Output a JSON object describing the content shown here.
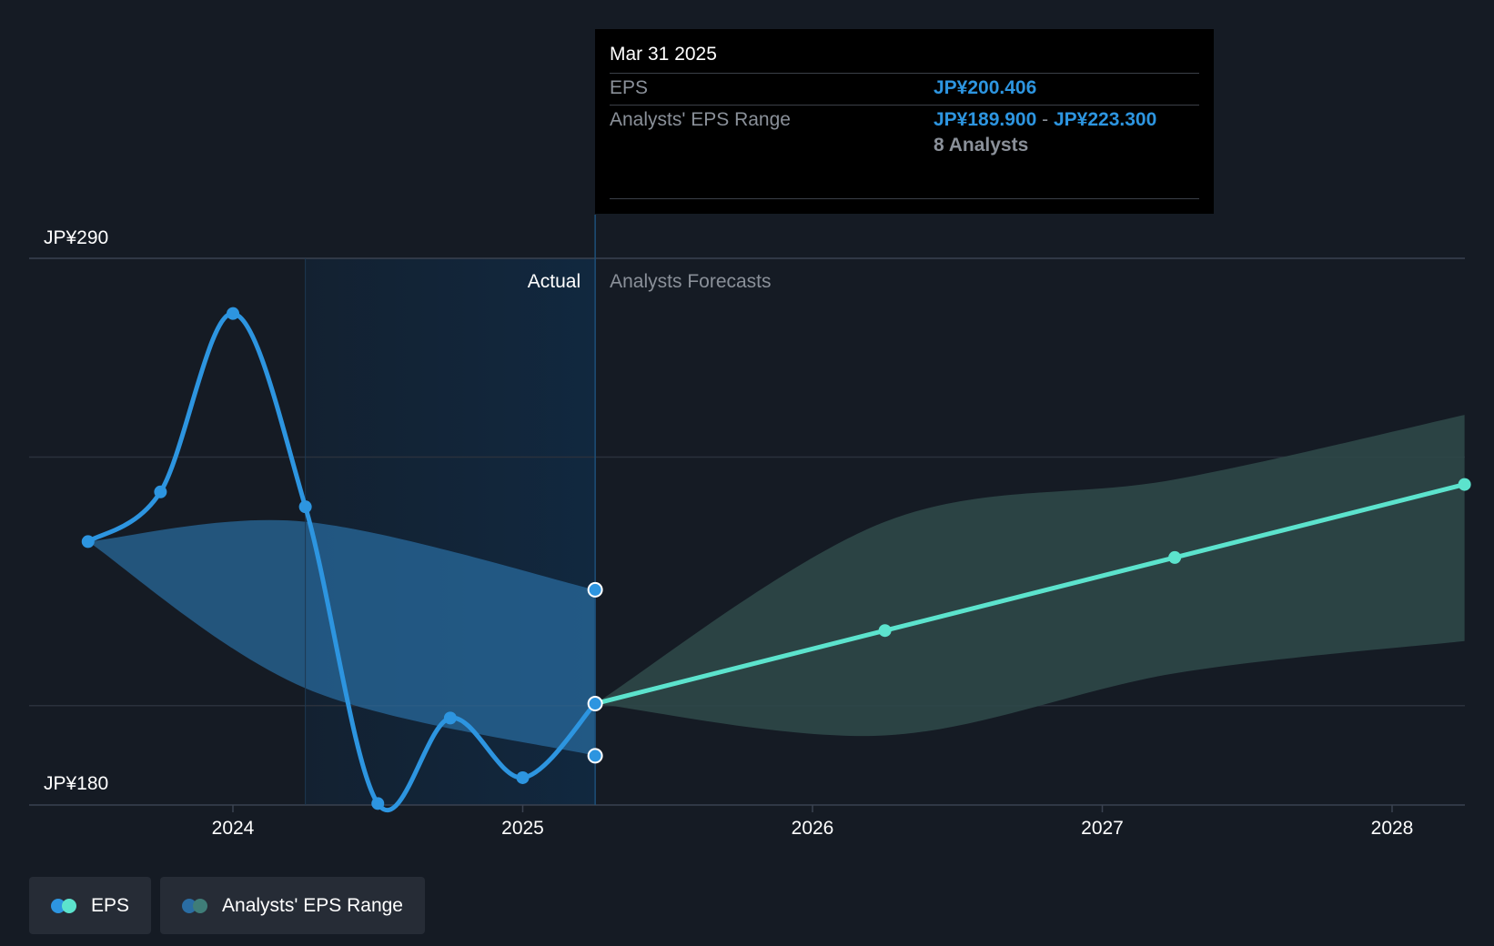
{
  "chart_data": {
    "type": "line",
    "y_axis": {
      "min": 180,
      "max": 290,
      "labels": [
        "JP¥290",
        "JP¥180"
      ],
      "label_values": [
        290,
        180
      ]
    },
    "x_axis": {
      "ticks": [
        "2024",
        "2025",
        "2026",
        "2027",
        "2028"
      ],
      "tick_values": [
        2024,
        2025,
        2026,
        2027,
        2028
      ],
      "range": [
        2023.5,
        2028.25
      ]
    },
    "actual_start": 2024.25,
    "divider": 2025.25,
    "region_labels": {
      "actual": "Actual",
      "forecast": "Analysts Forecasts"
    },
    "series": [
      {
        "name": "EPS",
        "kind": "actual",
        "color": "#2d95e0",
        "points": [
          [
            2023.75,
            243.0
          ],
          [
            2024.0,
            278.9
          ],
          [
            2024.25,
            240.0
          ],
          [
            2024.5,
            180.3
          ],
          [
            2024.75,
            197.5
          ],
          [
            2025.0,
            185.5
          ],
          [
            2025.25,
            200.4
          ]
        ]
      },
      {
        "name": "EPS",
        "kind": "forecast",
        "color": "#5ce3cd",
        "points": [
          [
            2025.25,
            200.4
          ],
          [
            2026.25,
            215.1
          ],
          [
            2027.25,
            229.8
          ],
          [
            2028.25,
            244.5
          ]
        ]
      }
    ],
    "actual_range": {
      "upper": [
        [
          2023.5,
          233.0
        ],
        [
          2024.25,
          237.0
        ],
        [
          2025.25,
          223.3
        ]
      ],
      "lower": [
        [
          2023.5,
          233.0
        ],
        [
          2024.25,
          203.5
        ],
        [
          2025.25,
          189.9
        ]
      ]
    },
    "forecast_range": {
      "upper": [
        [
          2025.25,
          200.4
        ],
        [
          2026.25,
          237.0
        ],
        [
          2027.25,
          245.5
        ],
        [
          2028.25,
          258.5
        ]
      ],
      "lower": [
        [
          2025.25,
          200.4
        ],
        [
          2026.25,
          194.0
        ],
        [
          2027.25,
          206.5
        ],
        [
          2028.25,
          213.0
        ]
      ]
    },
    "actual_start_point": [
      2023.5,
      233.0
    ],
    "colors": {
      "eps": "#2d95e0",
      "forecast_eps": "#5ce3cd",
      "actual_range": "#2a6da3",
      "forecast_range": "#2d4848"
    },
    "grid": true
  },
  "tooltip": {
    "date": "Mar 31 2025",
    "eps_label": "EPS",
    "eps_value": "JP¥200.406",
    "range_label": "Analysts' EPS Range",
    "range_low": "JP¥189.900",
    "range_sep": "-",
    "range_high": "JP¥223.300",
    "analysts": "8 Analysts"
  },
  "legend": {
    "items": [
      {
        "label": "EPS",
        "colors": [
          "#2d95e0",
          "#5ce3cd"
        ]
      },
      {
        "label": "Analysts' EPS Range",
        "colors": [
          "#2a6da3",
          "#3f7d78"
        ]
      }
    ]
  }
}
